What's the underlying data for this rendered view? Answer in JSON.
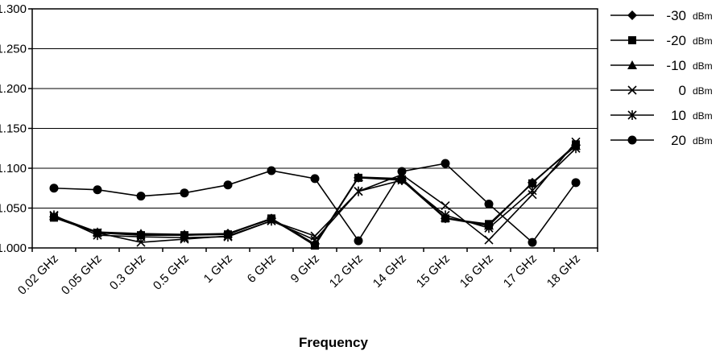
{
  "chart_data": {
    "type": "line",
    "title": "",
    "xlabel": "Frequency",
    "ylabel": "",
    "ylim": [
      1.0,
      1.3
    ],
    "yticks": [
      "1.000",
      "1.050",
      "1.100",
      "1.150",
      "1.200",
      "1.250",
      "1.300"
    ],
    "grid": "horizontal",
    "legend_position": "right",
    "categories": [
      "0.02 GHz",
      "0.05 GHz",
      "0.3 GHz",
      "0.5 GHz",
      "1 GHz",
      "6 GHz",
      "9 GHz",
      "12 GHz",
      "14 GHz",
      "15 GHz",
      "16 GHz",
      "17 GHz",
      "18 GHz"
    ],
    "series": [
      {
        "name": "-30",
        "unit": "dBm",
        "marker": "diamond",
        "values": [
          1.039,
          1.019,
          1.017,
          1.016,
          1.018,
          1.037,
          1.005,
          1.088,
          1.085,
          1.037,
          1.028,
          1.082,
          1.129
        ]
      },
      {
        "name": "-20",
        "unit": "dBm",
        "marker": "square",
        "values": [
          1.038,
          1.019,
          1.016,
          1.016,
          1.017,
          1.037,
          1.003,
          1.088,
          1.086,
          1.037,
          1.03,
          1.081,
          1.13
        ]
      },
      {
        "name": "-10",
        "unit": "dBm",
        "marker": "triangle",
        "values": [
          1.04,
          1.02,
          1.018,
          1.017,
          1.018,
          1.036,
          1.004,
          1.089,
          1.087,
          1.038,
          1.028,
          1.082,
          1.128
        ]
      },
      {
        "name": "0",
        "unit": "dBm",
        "marker": "x",
        "values": [
          1.04,
          1.019,
          1.007,
          1.011,
          1.015,
          1.034,
          1.015,
          1.071,
          1.092,
          1.053,
          1.01,
          1.067,
          1.133
        ]
      },
      {
        "name": "10",
        "unit": "dBm",
        "marker": "asterisk",
        "values": [
          1.041,
          1.016,
          1.014,
          1.013,
          1.014,
          1.034,
          1.01,
          1.071,
          1.085,
          1.041,
          1.025,
          1.072,
          1.125
        ]
      },
      {
        "name": "20",
        "unit": "dBm",
        "marker": "circle",
        "values": [
          1.075,
          1.073,
          1.065,
          1.069,
          1.079,
          1.097,
          1.087,
          1.009,
          1.096,
          1.106,
          1.055,
          1.007,
          1.082
        ]
      }
    ]
  },
  "colors": {
    "line": "#000000",
    "grid": "#000000",
    "background": "#ffffff"
  }
}
